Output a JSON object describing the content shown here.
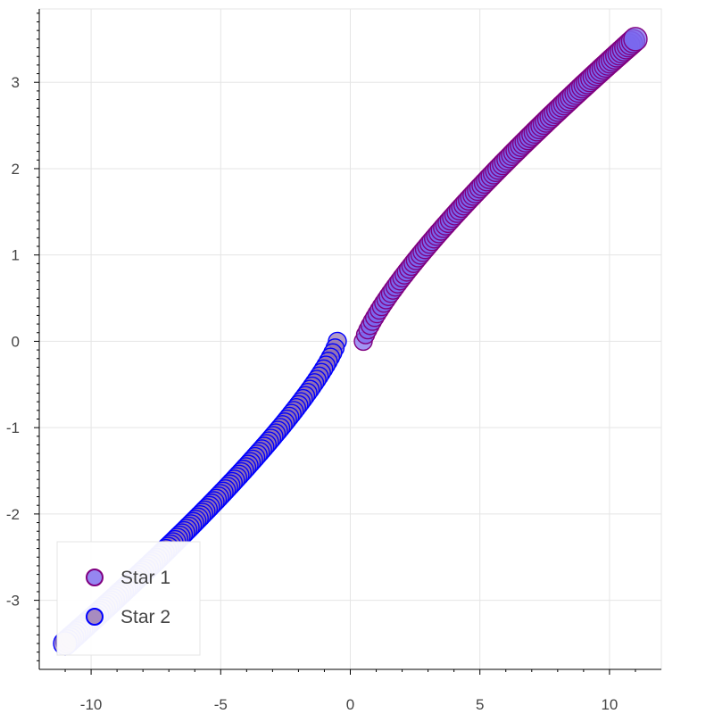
{
  "chart_data": {
    "type": "scatter",
    "title": "",
    "xlabel": "",
    "ylabel": "",
    "xlim": [
      -12,
      12
    ],
    "ylim": [
      -3.8,
      3.85
    ],
    "x_ticks": [
      -10,
      -5,
      0,
      5,
      10
    ],
    "x_tick_labels": [
      "-10",
      "-5",
      "0",
      "5",
      "10"
    ],
    "y_ticks": [
      -3,
      -2,
      -1,
      0,
      1,
      2,
      3
    ],
    "y_tick_labels": [
      "-3",
      "-2",
      "-1",
      "0",
      "1",
      "2",
      "3"
    ],
    "grid": true,
    "legend_position": "bottom-left",
    "series": [
      {
        "name": "Star 1",
        "fill_color": "#7b68ee",
        "line_color": "#800080",
        "x_range": [
          0.5,
          11
        ],
        "y_range": [
          0.0,
          3.5
        ]
      },
      {
        "name": "Star 2",
        "fill_color": "#9370b0",
        "line_color": "#0000ff",
        "x_range": [
          -0.5,
          -11
        ],
        "y_range": [
          0.0,
          -3.5
        ]
      }
    ]
  }
}
